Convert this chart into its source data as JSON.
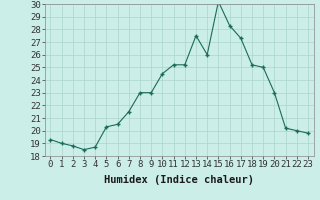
{
  "x": [
    0,
    1,
    2,
    3,
    4,
    5,
    6,
    7,
    8,
    9,
    10,
    11,
    12,
    13,
    14,
    15,
    16,
    17,
    18,
    19,
    20,
    21,
    22,
    23
  ],
  "y": [
    19.3,
    19.0,
    18.8,
    18.5,
    18.7,
    20.3,
    20.5,
    21.5,
    23.0,
    23.0,
    24.5,
    25.2,
    25.2,
    27.5,
    26.0,
    30.2,
    28.3,
    27.3,
    25.2,
    25.0,
    23.0,
    20.2,
    20.0,
    19.8
  ],
  "xlabel": "Humidex (Indice chaleur)",
  "ylim": [
    18,
    30
  ],
  "yticks": [
    18,
    19,
    20,
    21,
    22,
    23,
    24,
    25,
    26,
    27,
    28,
    29,
    30
  ],
  "xticks": [
    0,
    1,
    2,
    3,
    4,
    5,
    6,
    7,
    8,
    9,
    10,
    11,
    12,
    13,
    14,
    15,
    16,
    17,
    18,
    19,
    20,
    21,
    22,
    23
  ],
  "line_color": "#1a6b5a",
  "marker_color": "#1a6b5a",
  "bg_color": "#cceee8",
  "grid_color": "#aad4cc",
  "tick_fontsize": 6.5,
  "xlabel_fontsize": 7.5
}
